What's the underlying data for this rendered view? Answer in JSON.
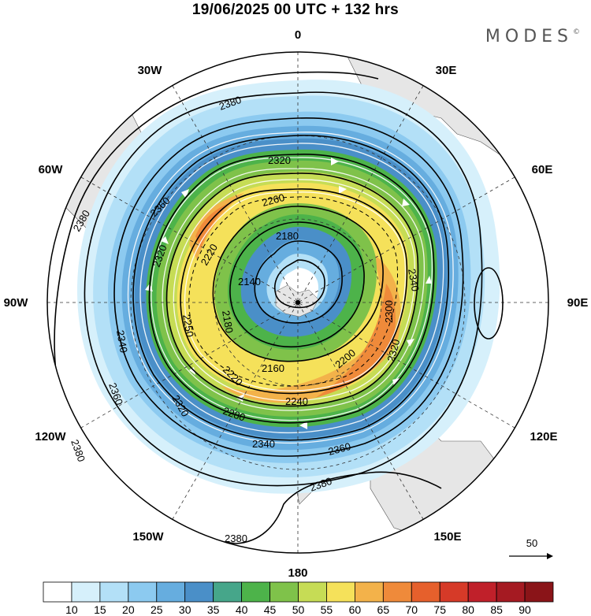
{
  "title": "19/06/2025  00 UTC  + 132 hrs",
  "brand": "MODES",
  "brand_mark": "©",
  "longitude_labels": [
    "0",
    "30E",
    "60E",
    "90E",
    "120E",
    "150E",
    "180",
    "150W",
    "120W",
    "90W",
    "60W",
    "30W"
  ],
  "contour_labels": [
    "2380",
    "2380",
    "2380",
    "2380",
    "2380",
    "2360",
    "2360",
    "2360",
    "2340",
    "2340",
    "2340",
    "2320",
    "2320",
    "2320",
    "2320",
    "2300",
    "2280",
    "2260",
    "2240",
    "2220",
    "2220",
    "2200",
    "2180",
    "2180",
    "2160",
    "2140",
    "2250"
  ],
  "reference_vector": "50",
  "colorbar": {
    "ticks": [
      "10",
      "15",
      "20",
      "25",
      "30",
      "35",
      "40",
      "45",
      "50",
      "55",
      "60",
      "65",
      "70",
      "75",
      "80",
      "85",
      "90"
    ],
    "colors": [
      "#ffffff",
      "#d6f0fb",
      "#b3e0f7",
      "#8ccaf0",
      "#66addf",
      "#4a8fc8",
      "#46a68a",
      "#4db34a",
      "#7fc24a",
      "#c6dc55",
      "#f5e15a",
      "#f3b24a",
      "#ef8a3a",
      "#e6602c",
      "#d63a28",
      "#c0202a",
      "#a51a22",
      "#8a1418"
    ]
  }
}
